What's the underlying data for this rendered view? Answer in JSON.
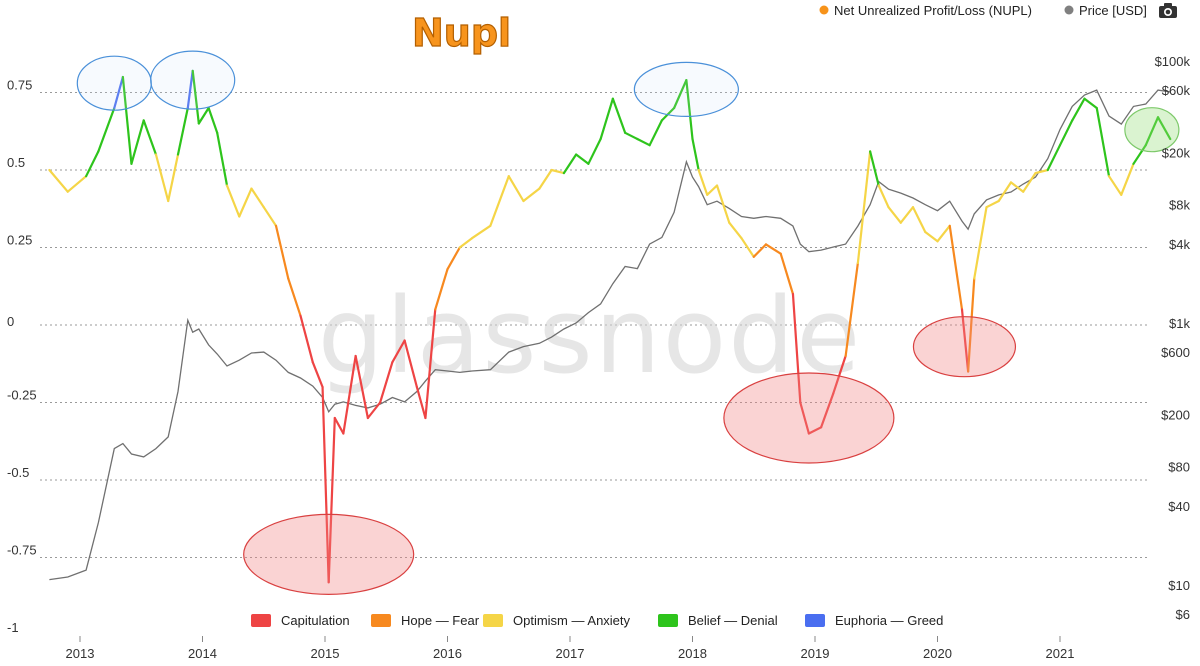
{
  "chart_data": {
    "type": "line",
    "title": "Nupl",
    "watermark": "glassnode",
    "legend_top": [
      {
        "label": "Net Unrealized Profit/Loss (NUPL)",
        "color": "#f7931a"
      },
      {
        "label": "Price [USD]",
        "color": "#808080"
      }
    ],
    "zones": [
      {
        "label": "Capitulation",
        "color": "#ee4444",
        "range": [
          -1,
          0
        ]
      },
      {
        "label": "Hope — Fear",
        "color": "#f7891f",
        "range": [
          0,
          0.25
        ]
      },
      {
        "label": "Optimism — Anxiety",
        "color": "#f5d547",
        "range": [
          0.25,
          0.5
        ]
      },
      {
        "label": "Belief — Denial",
        "color": "#2ec41c",
        "range": [
          0.5,
          0.75
        ]
      },
      {
        "label": "Euphoria — Greed",
        "color": "#4a6ef0",
        "range": [
          0.75,
          1
        ]
      }
    ],
    "x_ticks": [
      "2013",
      "2014",
      "2015",
      "2016",
      "2017",
      "2018",
      "2019",
      "2020",
      "2021"
    ],
    "y_left": {
      "ticks": [
        "0.75",
        "0.5",
        "0.25",
        "0",
        "-0.25",
        "-0.5",
        "-0.75",
        "-1"
      ],
      "range": [
        -1,
        1
      ]
    },
    "y_right": {
      "ticks": [
        "$100k",
        "$60k",
        "$20k",
        "$8k",
        "$4k",
        "$1k",
        "$600",
        "$200",
        "$80",
        "$40",
        "$10",
        "$6"
      ],
      "scale": "log"
    },
    "x": [
      2012.75,
      2012.9,
      2013.05,
      2013.15,
      2013.28,
      2013.35,
      2013.42,
      2013.52,
      2013.62,
      2013.72,
      2013.8,
      2013.88,
      2013.92,
      2013.97,
      2014.05,
      2014.12,
      2014.2,
      2014.3,
      2014.4,
      2014.5,
      2014.6,
      2014.7,
      2014.8,
      2014.9,
      2014.98,
      2015.03,
      2015.08,
      2015.15,
      2015.25,
      2015.35,
      2015.45,
      2015.55,
      2015.65,
      2015.75,
      2015.82,
      2015.9,
      2016.0,
      2016.1,
      2016.2,
      2016.35,
      2016.5,
      2016.62,
      2016.75,
      2016.85,
      2016.95,
      2017.05,
      2017.15,
      2017.25,
      2017.35,
      2017.45,
      2017.55,
      2017.65,
      2017.75,
      2017.85,
      2017.95,
      2018.0,
      2018.05,
      2018.12,
      2018.2,
      2018.3,
      2018.4,
      2018.5,
      2018.6,
      2018.72,
      2018.82,
      2018.88,
      2018.95,
      2019.05,
      2019.15,
      2019.25,
      2019.35,
      2019.45,
      2019.52,
      2019.6,
      2019.7,
      2019.8,
      2019.9,
      2020.0,
      2020.1,
      2020.2,
      2020.25,
      2020.3,
      2020.4,
      2020.5,
      2020.6,
      2020.7,
      2020.8,
      2020.9,
      2021.0,
      2021.1,
      2021.2,
      2021.3,
      2021.4,
      2021.5,
      2021.6,
      2021.7,
      2021.8,
      2021.9
    ],
    "nupl": [
      0.5,
      0.43,
      0.48,
      0.56,
      0.7,
      0.8,
      0.52,
      0.66,
      0.55,
      0.4,
      0.55,
      0.7,
      0.82,
      0.65,
      0.7,
      0.62,
      0.45,
      0.35,
      0.44,
      0.38,
      0.32,
      0.15,
      0.03,
      -0.12,
      -0.2,
      -0.83,
      -0.3,
      -0.35,
      -0.1,
      -0.3,
      -0.25,
      -0.12,
      -0.05,
      -0.2,
      -0.3,
      0.05,
      0.18,
      0.25,
      0.28,
      0.32,
      0.48,
      0.4,
      0.44,
      0.5,
      0.49,
      0.55,
      0.52,
      0.6,
      0.73,
      0.62,
      0.6,
      0.58,
      0.66,
      0.7,
      0.79,
      0.6,
      0.5,
      0.42,
      0.45,
      0.33,
      0.28,
      0.22,
      0.26,
      0.23,
      0.1,
      -0.25,
      -0.35,
      -0.33,
      -0.22,
      -0.1,
      0.2,
      0.56,
      0.45,
      0.38,
      0.33,
      0.38,
      0.3,
      0.27,
      0.32,
      0.05,
      -0.15,
      0.15,
      0.38,
      0.4,
      0.46,
      0.43,
      0.49,
      0.5,
      0.58,
      0.66,
      0.73,
      0.7,
      0.48,
      0.42,
      0.52,
      0.58,
      0.67,
      0.6
    ],
    "price_usd": [
      11,
      11.5,
      13,
      30,
      110,
      120,
      100,
      95,
      110,
      135,
      300,
      1050,
      850,
      900,
      680,
      580,
      470,
      520,
      590,
      600,
      520,
      420,
      380,
      330,
      270,
      210,
      240,
      250,
      235,
      225,
      240,
      270,
      250,
      300,
      360,
      440,
      430,
      420,
      430,
      440,
      600,
      660,
      700,
      780,
      900,
      1000,
      1200,
      1400,
      2000,
      2700,
      2600,
      4000,
      4500,
      7000,
      17000,
      13000,
      11000,
      8000,
      8500,
      7500,
      6500,
      6300,
      6500,
      6300,
      5500,
      4000,
      3500,
      3600,
      3800,
      4000,
      5500,
      8000,
      12000,
      10500,
      9800,
      9000,
      8000,
      7200,
      8500,
      6000,
      5200,
      6800,
      8700,
      9500,
      10000,
      11500,
      13000,
      18000,
      30000,
      45000,
      55000,
      60000,
      38000,
      33000,
      45000,
      47000,
      60000,
      58000
    ]
  }
}
